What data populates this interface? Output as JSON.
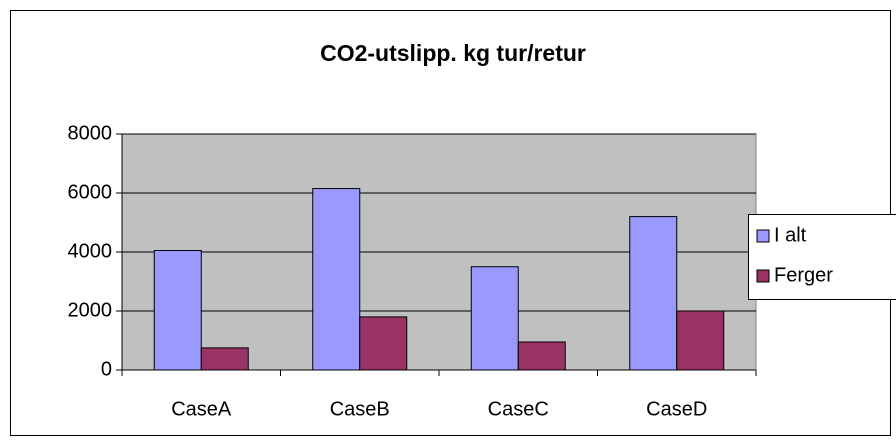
{
  "chart_data": {
    "type": "bar",
    "title": "CO2-utslipp. kg tur/retur",
    "categories": [
      "CaseA",
      "CaseB",
      "CaseC",
      "CaseD"
    ],
    "series": [
      {
        "name": "I alt",
        "color": "#9999ff",
        "values": [
          4050,
          6150,
          3500,
          5200
        ]
      },
      {
        "name": "Ferger",
        "color": "#993366",
        "values": [
          750,
          1800,
          950,
          2000
        ]
      }
    ],
    "ylim": [
      0,
      8000
    ],
    "yticks": [
      0,
      2000,
      4000,
      6000,
      8000
    ],
    "grid": true,
    "legend": "right"
  }
}
